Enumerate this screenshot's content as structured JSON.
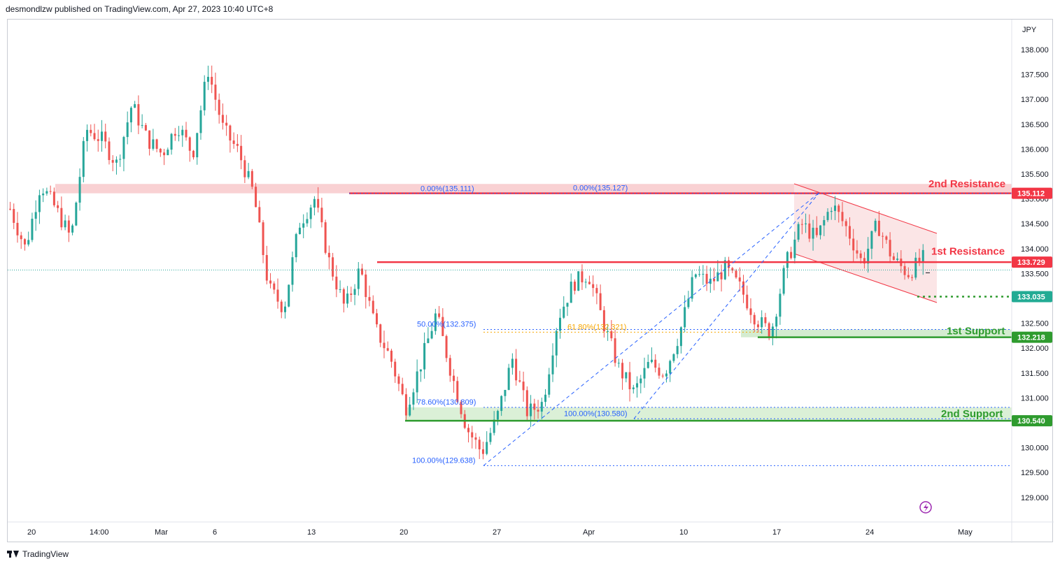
{
  "header": {
    "text": "desmondlzw published on TradingView.com, Apr 27, 2023 10:40 UTC+8"
  },
  "footer": {
    "brand": "TradingView"
  },
  "chart_data": {
    "type": "candlestick",
    "currency": "JPY",
    "ylim": [
      128.5,
      138.5
    ],
    "y_ticks": [
      "138.000",
      "137.500",
      "137.000",
      "136.500",
      "136.000",
      "135.500",
      "135.000",
      "134.500",
      "134.000",
      "133.500",
      "133.000",
      "132.500",
      "132.000",
      "131.500",
      "131.000",
      "130.500",
      "130.000",
      "129.500",
      "129.000"
    ],
    "x_ticks": [
      "20",
      "14:00",
      "Mar",
      "6",
      "13",
      "20",
      "27",
      "Apr",
      "10",
      "17",
      "24",
      "May"
    ],
    "price_labels": [
      {
        "value": "135.112",
        "level": 135.112,
        "color": "#f23645"
      },
      {
        "value": "133.729",
        "level": 133.729,
        "color": "#f23645"
      },
      {
        "value": "133.035",
        "level": 133.035,
        "color": "#22ab94"
      },
      {
        "value": "132.218",
        "level": 132.218,
        "color": "#2e9b2e"
      },
      {
        "value": "130.540",
        "level": 130.54,
        "color": "#2e9b2e"
      }
    ],
    "zone_labels": [
      {
        "text": "2nd Resistance",
        "level": 135.3,
        "color": "#f23645"
      },
      {
        "text": "1st Resistance",
        "level": 133.95,
        "color": "#f23645"
      },
      {
        "text": "1st Support",
        "level": 132.35,
        "color": "#2e9b2e"
      },
      {
        "text": "2nd Support",
        "level": 130.68,
        "color": "#2e9b2e"
      }
    ],
    "fib_labels": [
      {
        "text": "0.00%(135.111)",
        "level": 135.111,
        "color": "#2962ff"
      },
      {
        "text": "0.00%(135.127)",
        "level": 135.127,
        "color": "#2962ff"
      },
      {
        "text": "50.00%(132.375)",
        "level": 132.375,
        "color": "#2962ff"
      },
      {
        "text": "61.80%(132.321)",
        "level": 132.321,
        "color": "#f7a600"
      },
      {
        "text": "78.60%(130.809)",
        "level": 130.809,
        "color": "#2962ff"
      },
      {
        "text": "100.00%(130.580)",
        "level": 130.58,
        "color": "#2962ff"
      },
      {
        "text": "100.00%(129.638)",
        "level": 129.638,
        "color": "#2962ff"
      }
    ],
    "levels": {
      "resistance_2": 135.112,
      "resistance_1": 133.729,
      "last_price": 133.035,
      "support_1": 132.218,
      "support_2": 130.54,
      "prev_close": 133.57
    },
    "zones": {
      "resistance_2": [
        135.112,
        135.3
      ],
      "support_1": [
        132.218,
        132.375
      ],
      "support_2": [
        130.54,
        130.809
      ]
    },
    "path": [
      134.8,
      134.0,
      135.3,
      134.8,
      134.2,
      136.4,
      136.2,
      135.7,
      136.9,
      136.2,
      135.9,
      136.5,
      135.9,
      137.6,
      136.4,
      135.95,
      135.1,
      133.2,
      132.8,
      134.5,
      135.0,
      133.7,
      132.8,
      133.6,
      132.4,
      131.8,
      130.8,
      131.7,
      132.7,
      131.5,
      130.4,
      129.9,
      130.6,
      131.8,
      130.7,
      130.9,
      132.6,
      133.3,
      133.5,
      132.5,
      131.6,
      131.1,
      131.7,
      131.5,
      132.3,
      133.5,
      133.3,
      133.6,
      133.2,
      132.6,
      132.3,
      133.7,
      134.5,
      134.2,
      134.9,
      134.4,
      133.7,
      134.5,
      133.8,
      133.5,
      133.8
    ]
  }
}
